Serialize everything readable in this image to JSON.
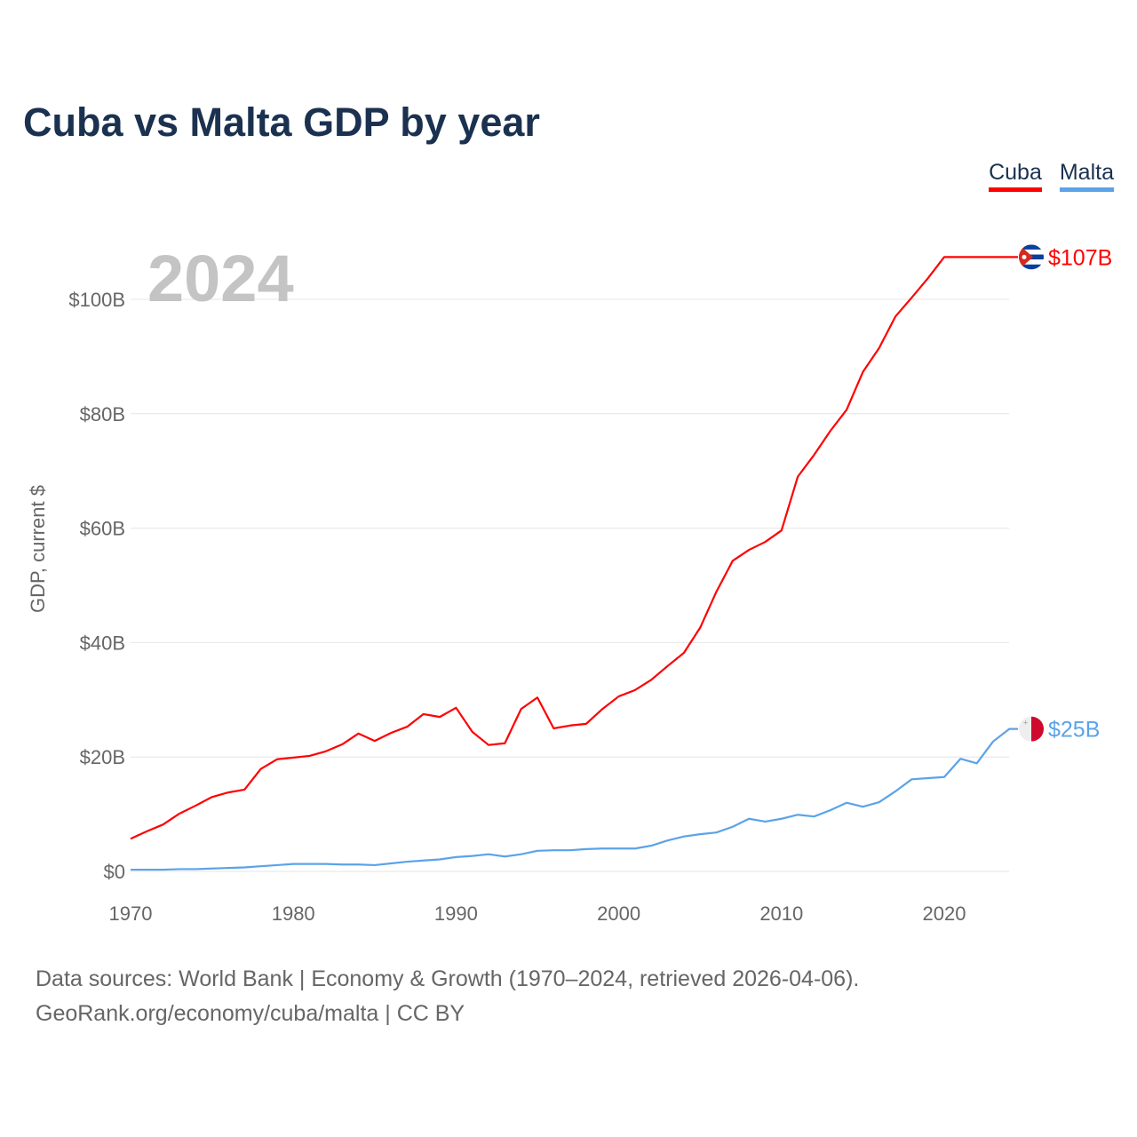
{
  "chart_data": {
    "type": "line",
    "title": "Cuba vs Malta GDP by year",
    "ylabel": "GDP, current $",
    "xlabel": "",
    "year_label": "2024",
    "xlim": [
      1970,
      2024
    ],
    "ylim": [
      0,
      110
    ],
    "x_ticks": [
      "1970",
      "1980",
      "1990",
      "2000",
      "2010",
      "2020"
    ],
    "y_ticks": [
      "$0",
      "$20B",
      "$40B",
      "$60B",
      "$80B",
      "$100B"
    ],
    "y_tick_values": [
      0,
      20,
      40,
      60,
      80,
      100
    ],
    "grid": true,
    "legend_placement": "top-right",
    "x": [
      1970,
      1971,
      1972,
      1973,
      1974,
      1975,
      1976,
      1977,
      1978,
      1979,
      1980,
      1981,
      1982,
      1983,
      1984,
      1985,
      1986,
      1987,
      1988,
      1989,
      1990,
      1991,
      1992,
      1993,
      1994,
      1995,
      1996,
      1997,
      1998,
      1999,
      2000,
      2001,
      2002,
      2003,
      2004,
      2005,
      2006,
      2007,
      2008,
      2009,
      2010,
      2011,
      2012,
      2013,
      2014,
      2015,
      2016,
      2017,
      2018,
      2019,
      2020,
      2021,
      2022,
      2023,
      2024
    ],
    "series": [
      {
        "name": "Cuba",
        "color": "#ff0000",
        "end_label": "$107B",
        "flag": "cuba",
        "values": [
          5.7,
          7.0,
          8.2,
          10.1,
          11.5,
          13.0,
          13.8,
          14.3,
          17.9,
          19.6,
          19.9,
          20.2,
          21.0,
          22.2,
          24.1,
          22.8,
          24.2,
          25.3,
          27.5,
          27.0,
          28.6,
          24.4,
          22.1,
          22.4,
          28.4,
          30.4,
          25.0,
          25.5,
          25.8,
          28.4,
          30.6,
          31.7,
          33.5,
          35.9,
          38.2,
          42.6,
          48.9,
          54.3,
          56.2,
          57.6,
          59.6,
          69.0,
          72.8,
          77.0,
          80.7,
          87.3,
          91.5,
          97.0,
          100.3,
          103.7,
          107.4,
          107.4,
          107.4,
          107.4,
          107.4
        ]
      },
      {
        "name": "Malta",
        "color": "#5ba3e8",
        "end_label": "$25B",
        "flag": "malta",
        "values": [
          0.3,
          0.3,
          0.3,
          0.4,
          0.4,
          0.5,
          0.6,
          0.7,
          0.9,
          1.1,
          1.3,
          1.3,
          1.3,
          1.2,
          1.2,
          1.1,
          1.4,
          1.7,
          1.9,
          2.1,
          2.5,
          2.7,
          3.0,
          2.6,
          3.0,
          3.6,
          3.7,
          3.7,
          3.9,
          4.0,
          4.0,
          4.0,
          4.5,
          5.4,
          6.1,
          6.5,
          6.8,
          7.8,
          9.2,
          8.7,
          9.2,
          9.9,
          9.6,
          10.7,
          12.0,
          11.3,
          12.1,
          14.0,
          16.1,
          16.3,
          16.5,
          19.7,
          18.9,
          22.7,
          24.9
        ]
      }
    ]
  },
  "source": {
    "line1": "Data sources: World Bank | Economy & Growth (1970–2024, retrieved 2026-04-06).",
    "line2": "GeoRank.org/economy/cuba/malta | CC BY"
  }
}
